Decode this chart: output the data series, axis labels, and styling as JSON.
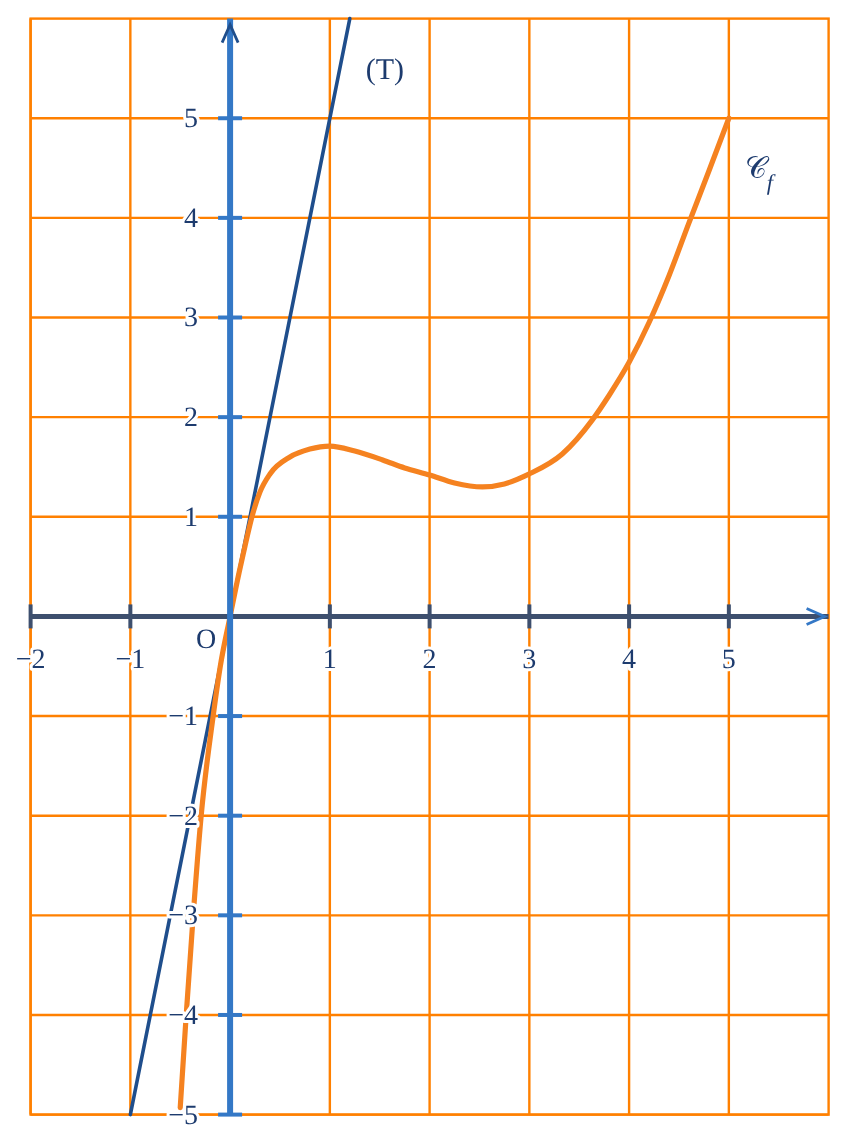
{
  "chart_data": {
    "type": "line",
    "series": [
      {
        "name": "(T)",
        "color": "#1f4e8c",
        "x": [
          -1,
          1.2
        ],
        "values": [
          -5,
          6
        ]
      },
      {
        "name": "𝒞$_{f}$",
        "color": "#f58220",
        "x": [
          -0.5,
          -0.44,
          -0.37,
          -0.29,
          -0.17,
          -0.1,
          0,
          0.09,
          0.13,
          0.23,
          0.3,
          0.4,
          0.6,
          0.8,
          1,
          1.25,
          1.53,
          1.75,
          2,
          2.25,
          2.53,
          2.75,
          3,
          3.33,
          3.63,
          3.8,
          4,
          4.2,
          4.4,
          4.6,
          4.8,
          5
        ],
        "values": [
          -4.93,
          -4,
          -3,
          -2,
          -1,
          -0.51,
          0,
          0.44,
          0.62,
          1.04,
          1.25,
          1.43,
          1.6,
          1.68,
          1.71,
          1.66,
          1.57,
          1.49,
          1.42,
          1.34,
          1.3,
          1.33,
          1.43,
          1.63,
          1.97,
          2.22,
          2.55,
          2.95,
          3.42,
          3.95,
          4.47,
          5
        ]
      }
    ],
    "xlim": [
      -2,
      6
    ],
    "ylim": [
      -5,
      6
    ],
    "xticks": [
      {
        "value": -2,
        "label": "−2"
      },
      {
        "value": -1,
        "label": "−1"
      },
      1,
      2,
      3,
      4,
      5
    ],
    "yticks": [
      {
        "value": -5,
        "label": "−5"
      },
      {
        "value": -4,
        "label": "−4"
      },
      {
        "value": -3,
        "label": "−3"
      },
      {
        "value": -2,
        "label": "−2"
      },
      {
        "value": -1,
        "label": "−1"
      },
      1,
      2,
      3,
      4,
      5
    ],
    "grid": true,
    "annotations": [
      {
        "text": "O",
        "x": 0,
        "y": 0
      }
    ]
  }
}
